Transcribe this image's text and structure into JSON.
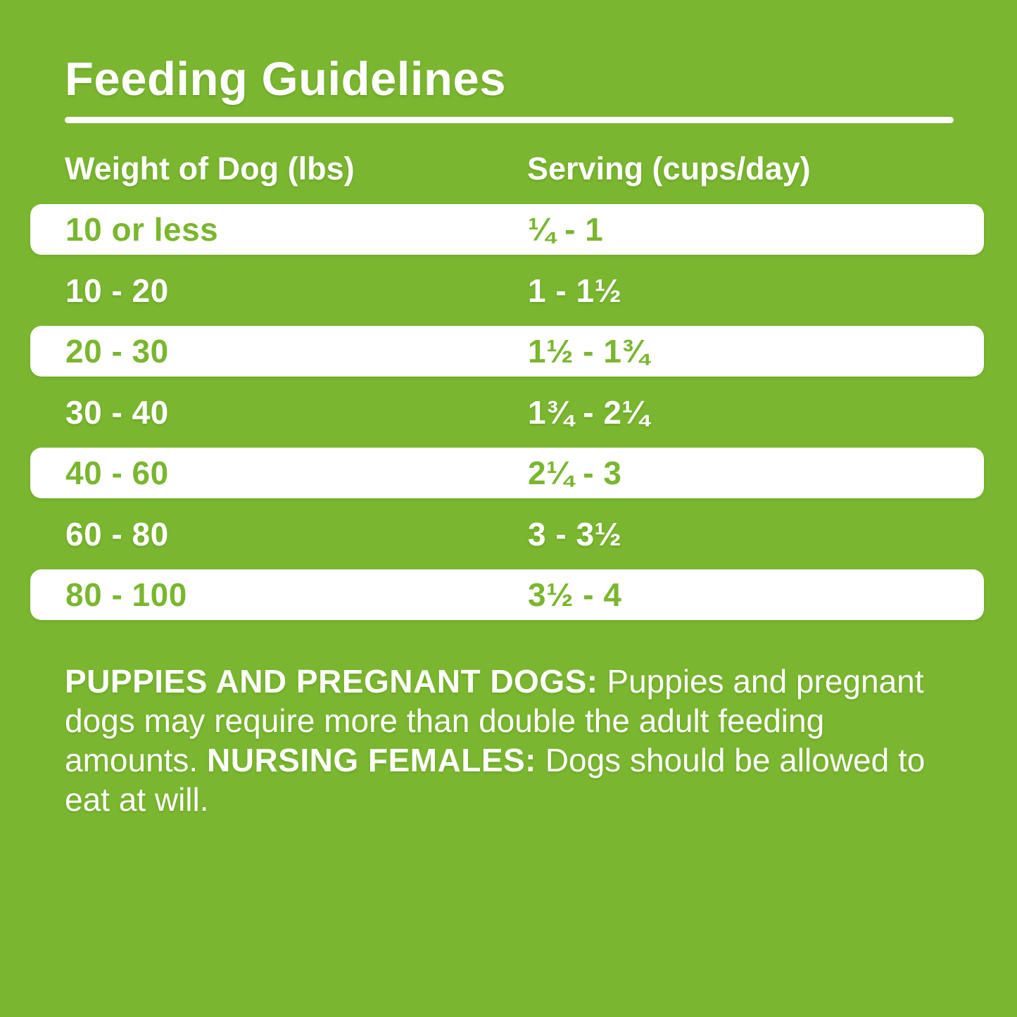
{
  "colors": {
    "background_green": "#7ab62f",
    "row_white": "#ffffff",
    "text_white": "#ffffff",
    "text_green": "#7ab62f"
  },
  "notes": {
    "heading1": "PUPPIES AND PREGNANT DOGS:",
    "body1": "Puppies and pregnant dogs may require more than double the adult feeding amounts.",
    "heading2": "NURSING FEMALES:",
    "body2": "Dogs should be allowed to eat at will."
  },
  "chart_data": {
    "type": "table",
    "title": "Feeding Guidelines",
    "columns": [
      "Weight of Dog (lbs)",
      "Serving (cups/day)"
    ],
    "rows": [
      [
        "10 or less",
        "¼ - 1"
      ],
      [
        "10 - 20",
        "1 - 1½"
      ],
      [
        "20 - 30",
        "1½ - 1¾"
      ],
      [
        "30 - 40",
        "1¾ - 2¼"
      ],
      [
        "40 - 60",
        "2¼ - 3"
      ],
      [
        "60 - 80",
        "3 - 3½"
      ],
      [
        "80 - 100",
        "3½ - 4"
      ]
    ],
    "row_styles": [
      "white",
      "green",
      "white",
      "green",
      "white",
      "green",
      "white"
    ],
    "footnote": "PUPPIES AND PREGNANT DOGS: Puppies and pregnant dogs may require more than double the adult feeding amounts. NURSING FEMALES: Dogs should be allowed to eat at will."
  }
}
